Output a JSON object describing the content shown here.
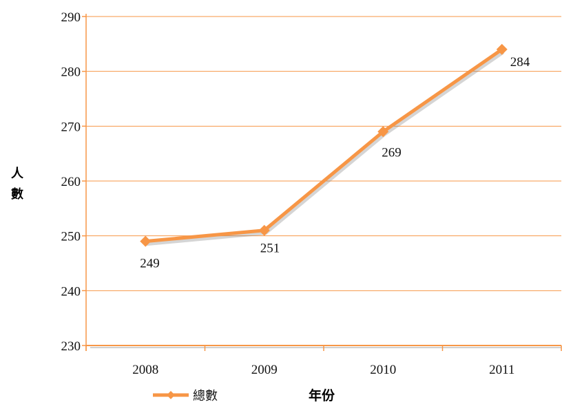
{
  "chart_data": {
    "type": "line",
    "categories": [
      "2008",
      "2009",
      "2010",
      "2011"
    ],
    "series": [
      {
        "name": "總數",
        "values": [
          249,
          251,
          269,
          284
        ],
        "color": "#f79646"
      }
    ],
    "data_labels": [
      "249",
      "251",
      "269",
      "284"
    ],
    "ylim": [
      230,
      290
    ],
    "yticks": [
      230,
      240,
      250,
      260,
      270,
      280,
      290
    ],
    "ylabel": "人數",
    "xlabel": "年份",
    "grid": true,
    "legend": "bottom-left",
    "gridline_color": "#f79646"
  }
}
